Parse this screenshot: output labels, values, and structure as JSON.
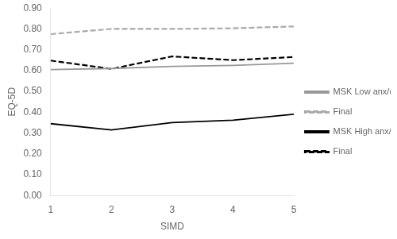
{
  "chart_data": {
    "type": "line",
    "xlabel": "SIMD",
    "ylabel": "EQ-5D",
    "x": [
      1,
      2,
      3,
      4,
      5
    ],
    "series": [
      {
        "name": "MSK Low anx/dep.",
        "color": "#999999",
        "line_style": "solid",
        "values": [
          0.605,
          0.61,
          0.62,
          0.625,
          0.635
        ]
      },
      {
        "name": "Final",
        "color": "#aaaaaa",
        "line_style": "dashed",
        "values": [
          0.775,
          0.8,
          0.8,
          0.803,
          0.812
        ]
      },
      {
        "name": "MSK High anx/dep.",
        "color": "#000000",
        "line_style": "solid",
        "values": [
          0.345,
          0.315,
          0.35,
          0.362,
          0.39
        ]
      },
      {
        "name": "Final",
        "color": "#000000",
        "line_style": "dashed",
        "values": [
          0.648,
          0.608,
          0.668,
          0.65,
          0.665
        ]
      }
    ],
    "xlim": [
      1,
      5
    ],
    "xticks": [
      1,
      2,
      3,
      4,
      5
    ],
    "ylim": [
      0.0,
      0.9
    ],
    "yticks": [
      {
        "value": 0.0,
        "label": "0.00"
      },
      {
        "value": 0.1,
        "label": "0.10"
      },
      {
        "value": 0.2,
        "label": "0.20"
      },
      {
        "value": 0.3,
        "label": "0.30"
      },
      {
        "value": 0.4,
        "label": "0.40"
      },
      {
        "value": 0.5,
        "label": "0.50"
      },
      {
        "value": 0.6,
        "label": "0.60"
      },
      {
        "value": 0.7,
        "label": "0.70"
      },
      {
        "value": 0.8,
        "label": "0.80"
      },
      {
        "value": 0.9,
        "label": "0.90"
      }
    ],
    "grid": false,
    "legend": "right"
  }
}
